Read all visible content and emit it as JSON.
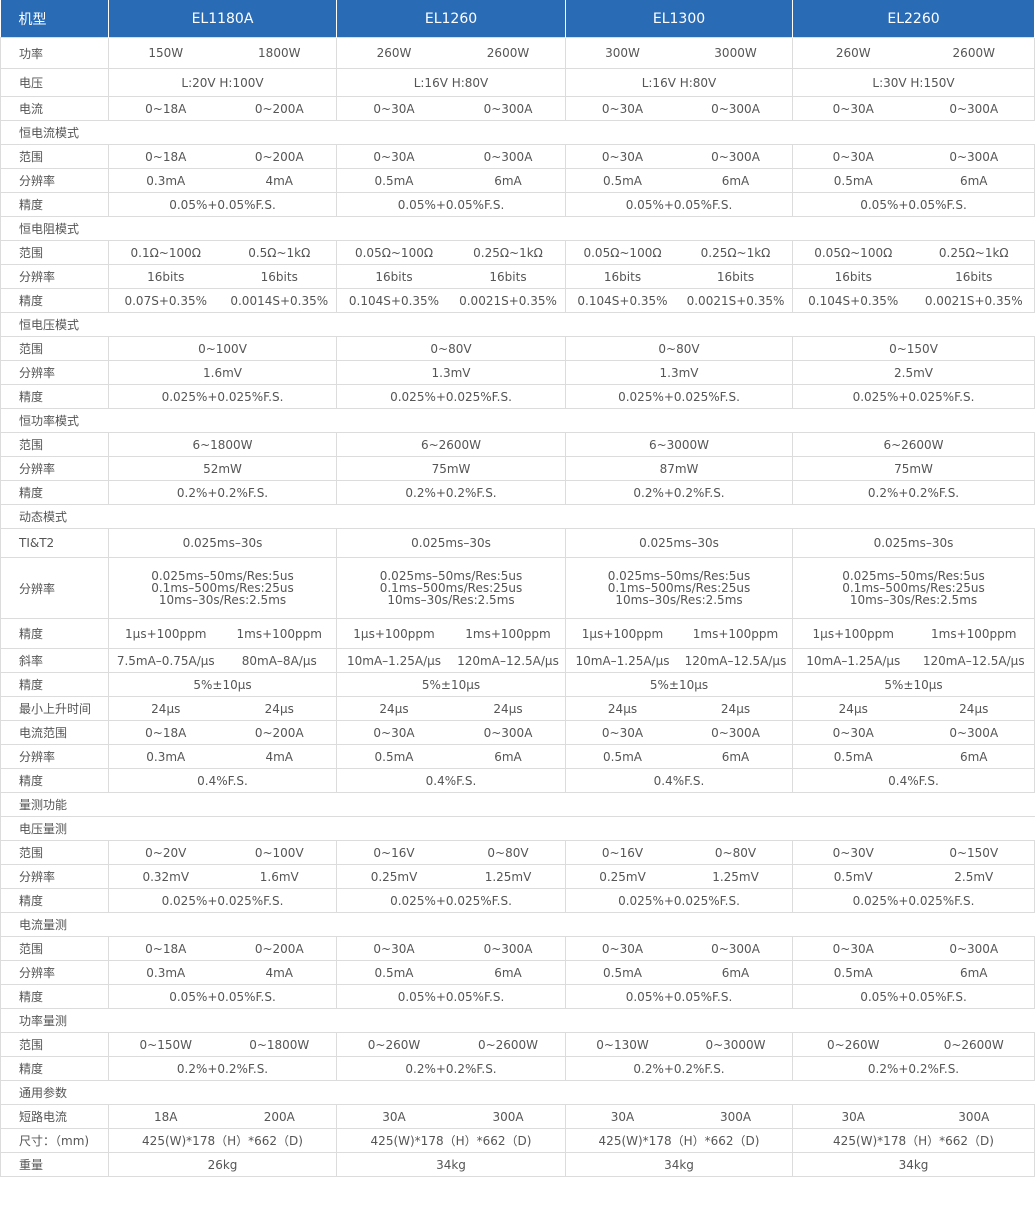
{
  "header": {
    "label": "机型",
    "models": [
      "EL1180A",
      "EL1260",
      "EL1300",
      "EL2260"
    ]
  },
  "rows": [
    {
      "label": "功率",
      "h": 31,
      "cells": [
        [
          "150W",
          "1800W"
        ],
        [
          "260W",
          "2600W"
        ],
        [
          "300W",
          "3000W"
        ],
        [
          "260W",
          "2600W"
        ]
      ]
    },
    {
      "label": "电压",
      "h": 28,
      "cells": [
        [
          "L:20V H:100V"
        ],
        [
          "L:16V H:80V"
        ],
        [
          "L:16V H:80V"
        ],
        [
          "L:30V H:150V"
        ]
      ]
    },
    {
      "label": "电流",
      "cells": [
        [
          "0~18A",
          "0~200A"
        ],
        [
          "0~30A",
          "0~300A"
        ],
        [
          "0~30A",
          "0~300A"
        ],
        [
          "0~30A",
          "0~300A"
        ]
      ]
    },
    {
      "section": "恒电流模式"
    },
    {
      "label": "范围",
      "cells": [
        [
          "0~18A",
          "0~200A"
        ],
        [
          "0~30A",
          "0~300A"
        ],
        [
          "0~30A",
          "0~300A"
        ],
        [
          "0~30A",
          "0~300A"
        ]
      ]
    },
    {
      "label": "分辨率",
      "cells": [
        [
          "0.3mA",
          "4mA"
        ],
        [
          "0.5mA",
          "6mA"
        ],
        [
          "0.5mA",
          "6mA"
        ],
        [
          "0.5mA",
          "6mA"
        ]
      ]
    },
    {
      "label": "精度",
      "cells": [
        [
          "0.05%+0.05%F.S."
        ],
        [
          "0.05%+0.05%F.S."
        ],
        [
          "0.05%+0.05%F.S."
        ],
        [
          "0.05%+0.05%F.S."
        ]
      ]
    },
    {
      "section": "恒电阻模式"
    },
    {
      "label": "范围",
      "cells": [
        [
          "0.1Ω~100Ω",
          "0.5Ω~1kΩ"
        ],
        [
          "0.05Ω~100Ω",
          "0.25Ω~1kΩ"
        ],
        [
          "0.05Ω~100Ω",
          "0.25Ω~1kΩ"
        ],
        [
          "0.05Ω~100Ω",
          "0.25Ω~1kΩ"
        ]
      ]
    },
    {
      "label": "分辨率",
      "cells": [
        [
          "16bits",
          "16bits"
        ],
        [
          "16bits",
          "16bits"
        ],
        [
          "16bits",
          "16bits"
        ],
        [
          "16bits",
          "16bits"
        ]
      ]
    },
    {
      "label": "精度",
      "cells": [
        [
          "0.07S+0.35%",
          "0.0014S+0.35%"
        ],
        [
          "0.104S+0.35%",
          "0.0021S+0.35%"
        ],
        [
          "0.104S+0.35%",
          "0.0021S+0.35%"
        ],
        [
          "0.104S+0.35%",
          "0.0021S+0.35%"
        ]
      ]
    },
    {
      "section": "恒电压模式"
    },
    {
      "label": "范围",
      "cells": [
        [
          "0~100V"
        ],
        [
          "0~80V"
        ],
        [
          "0~80V"
        ],
        [
          "0~150V"
        ]
      ]
    },
    {
      "label": "分辨率",
      "cells": [
        [
          "1.6mV"
        ],
        [
          "1.3mV"
        ],
        [
          "1.3mV"
        ],
        [
          "2.5mV"
        ]
      ]
    },
    {
      "label": "精度",
      "cells": [
        [
          "0.025%+0.025%F.S."
        ],
        [
          "0.025%+0.025%F.S."
        ],
        [
          "0.025%+0.025%F.S."
        ],
        [
          "0.025%+0.025%F.S."
        ]
      ]
    },
    {
      "section": "恒功率模式"
    },
    {
      "label": "范围",
      "cells": [
        [
          "6~1800W"
        ],
        [
          "6~2600W"
        ],
        [
          "6~3000W"
        ],
        [
          "6~2600W"
        ]
      ]
    },
    {
      "label": "分辨率",
      "cells": [
        [
          "52mW"
        ],
        [
          "75mW"
        ],
        [
          "87mW"
        ],
        [
          "75mW"
        ]
      ]
    },
    {
      "label": "精度",
      "cells": [
        [
          "0.2%+0.2%F.S."
        ],
        [
          "0.2%+0.2%F.S."
        ],
        [
          "0.2%+0.2%F.S."
        ],
        [
          "0.2%+0.2%F.S."
        ]
      ]
    },
    {
      "section": "动态模式"
    },
    {
      "label": "TI&T2",
      "h": 29,
      "cells": [
        [
          "0.025ms–30s"
        ],
        [
          "0.025ms–30s"
        ],
        [
          "0.025ms–30s"
        ],
        [
          "0.025ms–30s"
        ]
      ]
    },
    {
      "label": "分辨率",
      "h": 61,
      "multi": true,
      "cells": [
        [
          "0.025ms–50ms/Res:5us",
          "0.1ms–500ms/Res:25us",
          "10ms–30s/Res:2.5ms"
        ],
        [
          "0.025ms–50ms/Res:5us",
          "0.1ms–500ms/Res:25us",
          "10ms–30s/Res:2.5ms"
        ],
        [
          "0.025ms–50ms/Res:5us",
          "0.1ms–500ms/Res:25us",
          "10ms–30s/Res:2.5ms"
        ],
        [
          "0.025ms–50ms/Res:5us",
          "0.1ms–500ms/Res:25us",
          "10ms–30s/Res:2.5ms"
        ]
      ]
    },
    {
      "label": "精度",
      "h": 30,
      "cells": [
        [
          "1μs+100ppm",
          "1ms+100ppm"
        ],
        [
          "1μs+100ppm",
          "1ms+100ppm"
        ],
        [
          "1μs+100ppm",
          "1ms+100ppm"
        ],
        [
          "1μs+100ppm",
          "1ms+100ppm"
        ]
      ]
    },
    {
      "label": "斜率",
      "cells": [
        [
          "7.5mA–0.75A/μs",
          "80mA–8A/μs"
        ],
        [
          "10mA–1.25A/μs",
          "120mA–12.5A/μs"
        ],
        [
          "10mA–1.25A/μs",
          "120mA–12.5A/μs"
        ],
        [
          "10mA–1.25A/μs",
          "120mA–12.5A/μs"
        ]
      ]
    },
    {
      "label": "精度",
      "cells": [
        [
          "5%±10μs"
        ],
        [
          "5%±10μs"
        ],
        [
          "5%±10μs"
        ],
        [
          "5%±10μs"
        ]
      ]
    },
    {
      "label": "最小上升时间",
      "cells": [
        [
          "24μs",
          "24μs"
        ],
        [
          "24μs",
          "24μs"
        ],
        [
          "24μs",
          "24μs"
        ],
        [
          "24μs",
          "24μs"
        ]
      ]
    },
    {
      "label": "电流范围",
      "cells": [
        [
          "0~18A",
          "0~200A"
        ],
        [
          "0~30A",
          "0~300A"
        ],
        [
          "0~30A",
          "0~300A"
        ],
        [
          "0~30A",
          "0~300A"
        ]
      ]
    },
    {
      "label": "分辨率",
      "cells": [
        [
          "0.3mA",
          "4mA"
        ],
        [
          "0.5mA",
          "6mA"
        ],
        [
          "0.5mA",
          "6mA"
        ],
        [
          "0.5mA",
          "6mA"
        ]
      ]
    },
    {
      "label": "精度",
      "cells": [
        [
          "0.4%F.S."
        ],
        [
          "0.4%F.S."
        ],
        [
          "0.4%F.S."
        ],
        [
          "0.4%F.S."
        ]
      ]
    },
    {
      "section": "量测功能"
    },
    {
      "section": "电压量测"
    },
    {
      "label": "范围",
      "cells": [
        [
          "0~20V",
          "0~100V"
        ],
        [
          "0~16V",
          "0~80V"
        ],
        [
          "0~16V",
          "0~80V"
        ],
        [
          "0~30V",
          "0~150V"
        ]
      ]
    },
    {
      "label": "分辨率",
      "cells": [
        [
          "0.32mV",
          "1.6mV"
        ],
        [
          "0.25mV",
          "1.25mV"
        ],
        [
          "0.25mV",
          "1.25mV"
        ],
        [
          "0.5mV",
          "2.5mV"
        ]
      ]
    },
    {
      "label": "精度",
      "cells": [
        [
          "0.025%+0.025%F.S."
        ],
        [
          "0.025%+0.025%F.S."
        ],
        [
          "0.025%+0.025%F.S."
        ],
        [
          "0.025%+0.025%F.S."
        ]
      ]
    },
    {
      "section": "电流量测"
    },
    {
      "label": "范围",
      "cells": [
        [
          "0~18A",
          "0~200A"
        ],
        [
          "0~30A",
          "0~300A"
        ],
        [
          "0~30A",
          "0~300A"
        ],
        [
          "0~30A",
          "0~300A"
        ]
      ]
    },
    {
      "label": "分辨率",
      "cells": [
        [
          "0.3mA",
          "4mA"
        ],
        [
          "0.5mA",
          "6mA"
        ],
        [
          "0.5mA",
          "6mA"
        ],
        [
          "0.5mA",
          "6mA"
        ]
      ]
    },
    {
      "label": "精度",
      "cells": [
        [
          "0.05%+0.05%F.S."
        ],
        [
          "0.05%+0.05%F.S."
        ],
        [
          "0.05%+0.05%F.S."
        ],
        [
          "0.05%+0.05%F.S."
        ]
      ]
    },
    {
      "section": "功率量测"
    },
    {
      "label": "范围",
      "cells": [
        [
          "0~150W",
          "0~1800W"
        ],
        [
          "0~260W",
          "0~2600W"
        ],
        [
          "0~130W",
          "0~3000W"
        ],
        [
          "0~260W",
          "0~2600W"
        ]
      ]
    },
    {
      "label": "精度",
      "cells": [
        [
          "0.2%+0.2%F.S."
        ],
        [
          "0.2%+0.2%F.S."
        ],
        [
          "0.2%+0.2%F.S."
        ],
        [
          "0.2%+0.2%F.S."
        ]
      ]
    },
    {
      "section": "通用参数"
    },
    {
      "label": "短路电流",
      "cells": [
        [
          "18A",
          "200A"
        ],
        [
          "30A",
          "300A"
        ],
        [
          "30A",
          "300A"
        ],
        [
          "30A",
          "300A"
        ]
      ]
    },
    {
      "label": "尺寸：（mm)",
      "cells": [
        [
          "425(W)*178（H）*662（D)"
        ],
        [
          "425(W)*178（H）*662（D)"
        ],
        [
          "425(W)*178（H）*662（D)"
        ],
        [
          "425(W)*178（H）*662（D)"
        ]
      ]
    },
    {
      "label": "重量",
      "cells": [
        [
          "26kg"
        ],
        [
          "34kg"
        ],
        [
          "34kg"
        ],
        [
          "34kg"
        ]
      ]
    }
  ]
}
